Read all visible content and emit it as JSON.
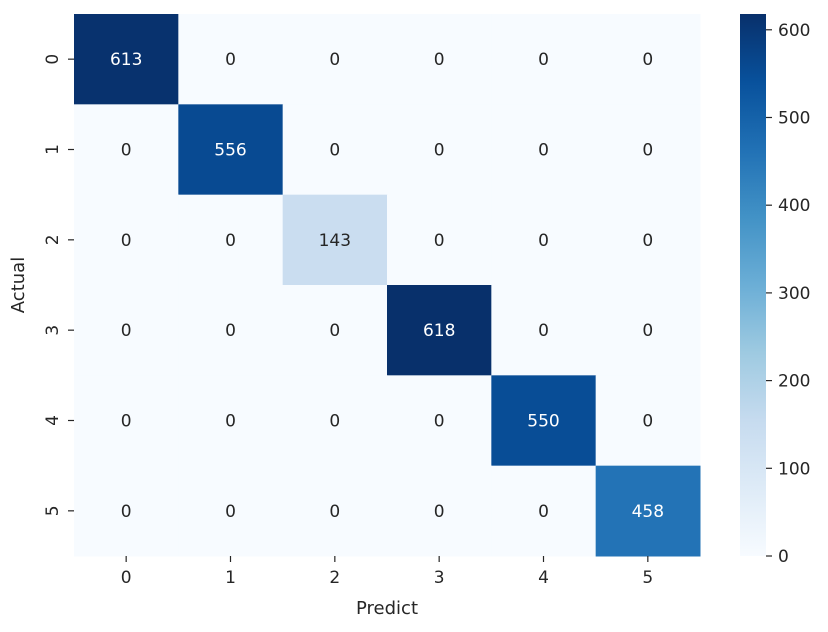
{
  "chart_data": {
    "type": "heatmap",
    "title": "",
    "xlabel": "Predict",
    "ylabel": "Actual",
    "x_categories": [
      "0",
      "1",
      "2",
      "3",
      "4",
      "5"
    ],
    "y_categories": [
      "0",
      "1",
      "2",
      "3",
      "4",
      "5"
    ],
    "values": [
      [
        613,
        0,
        0,
        0,
        0,
        0
      ],
      [
        0,
        556,
        0,
        0,
        0,
        0
      ],
      [
        0,
        0,
        143,
        0,
        0,
        0
      ],
      [
        0,
        0,
        0,
        618,
        0,
        0
      ],
      [
        0,
        0,
        0,
        0,
        550,
        0
      ],
      [
        0,
        0,
        0,
        0,
        0,
        458
      ]
    ],
    "colormap": "Blues",
    "colorbar": {
      "min": 0,
      "max": 618,
      "ticks": [
        0,
        100,
        200,
        300,
        400,
        500,
        600
      ],
      "tick_labels": [
        "0",
        "100",
        "200",
        "300",
        "400",
        "500",
        "600"
      ]
    },
    "grid": false,
    "legend": "colorbar-right"
  }
}
